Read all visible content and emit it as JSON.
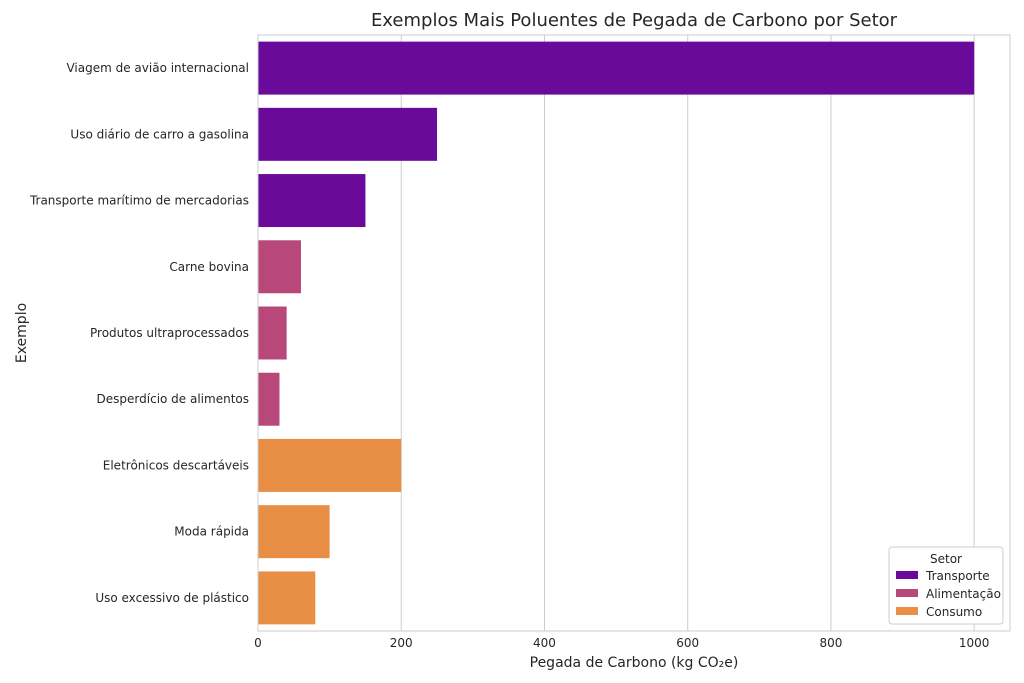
{
  "chart_data": {
    "type": "bar",
    "orientation": "horizontal",
    "title": "Exemplos Mais Poluentes de Pegada de Carbono por Setor",
    "xlabel": "Pegada de Carbono (kg CO₂e)",
    "ylabel": "Exemplo",
    "xlim": [
      0,
      1050
    ],
    "xticks": [
      0,
      200,
      400,
      600,
      800,
      1000
    ],
    "grid": true,
    "legend": {
      "title": "Setor",
      "placement": "bottom-right",
      "entries": [
        {
          "name": "Transporte",
          "color": "#6a0a9b"
        },
        {
          "name": "Alimentação",
          "color": "#b8477a"
        },
        {
          "name": "Consumo",
          "color": "#e88f45"
        }
      ]
    },
    "categories": [
      "Viagem de avião internacional",
      "Uso diário de carro a gasolina",
      "Transporte marítimo de mercadorias",
      "Carne bovina",
      "Produtos ultraprocessados",
      "Desperdício de alimentos",
      "Eletrônicos descartáveis",
      "Moda rápida",
      "Uso excessivo de plástico"
    ],
    "values": [
      1000,
      250,
      150,
      60,
      40,
      30,
      200,
      100,
      80
    ],
    "sectors": [
      "Transporte",
      "Transporte",
      "Transporte",
      "Alimentação",
      "Alimentação",
      "Alimentação",
      "Consumo",
      "Consumo",
      "Consumo"
    ]
  }
}
